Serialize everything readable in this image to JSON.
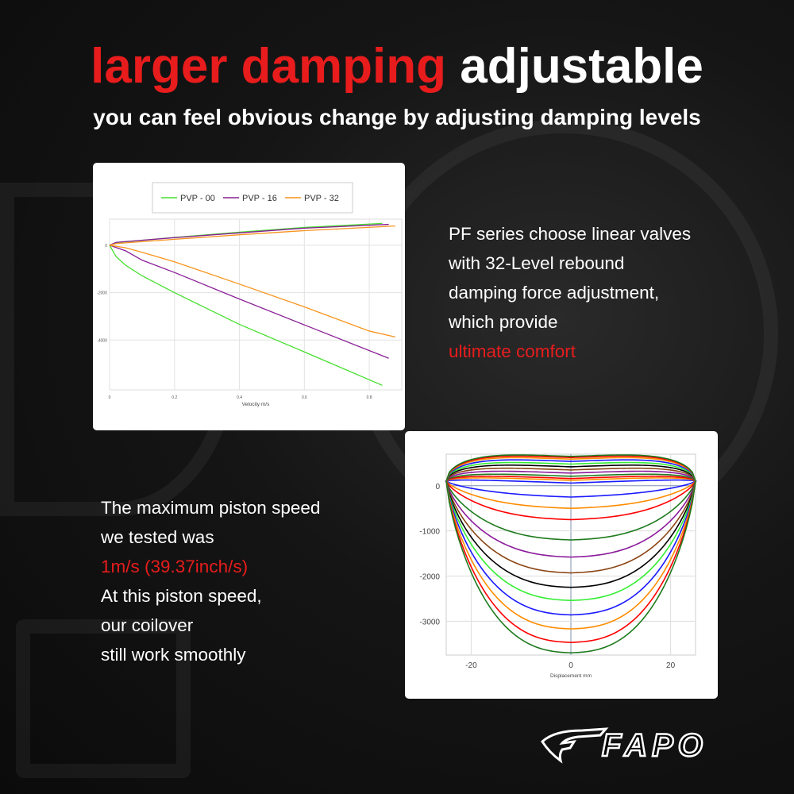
{
  "header": {
    "title_red": "larger damping",
    "title_white": "adjustable",
    "subtitle": "you can feel obvious change by adjusting damping levels"
  },
  "right_copy": {
    "lines": [
      "PF series choose linear valves",
      "with 32-Level rebound",
      "damping force adjustment,",
      "which provide"
    ],
    "highlight": "ultimate comfort"
  },
  "left_copy": {
    "lines_before": [
      "The maximum piston speed",
      "we tested was"
    ],
    "highlight": "1m/s (39.37inch/s)",
    "lines_after": [
      "At this piston speed,",
      "our coilover",
      "still work smoothly"
    ]
  },
  "logo": {
    "text": "FAPO"
  },
  "colors": {
    "accent_red": "#e81c1c",
    "background": "#111111"
  },
  "chart_data": [
    {
      "type": "line",
      "title": "",
      "xlabel": "Velocity m/s",
      "ylabel": "",
      "xlim": [
        0,
        0.9
      ],
      "ylim": [
        -6100,
        1100
      ],
      "x_ticks": [
        "0",
        "0.2",
        "0.4",
        "0.6",
        "0.8"
      ],
      "y_ticks": [
        "0",
        "-2000",
        "-4000"
      ],
      "grid": true,
      "legend": "top",
      "series": [
        {
          "name": "PVP - 00",
          "color": "#44e02c",
          "compression": [
            [
              0,
              0
            ],
            [
              0.02,
              110
            ],
            [
              0.2,
              330
            ],
            [
              0.4,
              550
            ],
            [
              0.6,
              750
            ],
            [
              0.84,
              920
            ]
          ],
          "rebound": [
            [
              0,
              0
            ],
            [
              0.02,
              -480
            ],
            [
              0.05,
              -850
            ],
            [
              0.1,
              -1290
            ],
            [
              0.2,
              -2000
            ],
            [
              0.4,
              -3340
            ],
            [
              0.6,
              -4500
            ],
            [
              0.84,
              -5910
            ]
          ]
        },
        {
          "name": "PVP - 16",
          "color": "#8a1f96",
          "compression": [
            [
              0,
              0
            ],
            [
              0.02,
              120
            ],
            [
              0.2,
              320
            ],
            [
              0.4,
              520
            ],
            [
              0.6,
              720
            ],
            [
              0.86,
              880
            ]
          ],
          "rebound": [
            [
              0,
              0
            ],
            [
              0.05,
              -240
            ],
            [
              0.1,
              -630
            ],
            [
              0.2,
              -1150
            ],
            [
              0.4,
              -2270
            ],
            [
              0.6,
              -3360
            ],
            [
              0.86,
              -4770
            ]
          ]
        },
        {
          "name": "PVP - 32",
          "color": "#f7941d",
          "compression": [
            [
              0,
              0
            ],
            [
              0.02,
              70
            ],
            [
              0.2,
              250
            ],
            [
              0.4,
              440
            ],
            [
              0.6,
              615
            ],
            [
              0.88,
              810
            ]
          ],
          "rebound": [
            [
              0,
              0
            ],
            [
              0.05,
              -110
            ],
            [
              0.1,
              -300
            ],
            [
              0.2,
              -700
            ],
            [
              0.4,
              -1640
            ],
            [
              0.6,
              -2600
            ],
            [
              0.8,
              -3620
            ],
            [
              0.88,
              -3870
            ]
          ]
        }
      ]
    },
    {
      "type": "line",
      "title": "",
      "xlabel": "Displacement mm",
      "ylabel": "",
      "xlim": [
        -25,
        25
      ],
      "ylim": [
        -3750,
        700
      ],
      "x_ticks": [
        "-20",
        "0",
        "20"
      ],
      "y_ticks": [
        "0",
        "-1000",
        "-2000",
        "-3000"
      ],
      "grid": true,
      "series": [
        {
          "color": "#1a1aff",
          "max": 60,
          "min": -250
        },
        {
          "color": "#ff8c00",
          "max": 120,
          "min": -500
        },
        {
          "color": "#ff0000",
          "max": 160,
          "min": -750
        },
        {
          "color": "#1e7b1e",
          "max": 210,
          "min": -1200
        },
        {
          "color": "#8b1a9b",
          "max": 280,
          "min": -1580
        },
        {
          "color": "#8b4513",
          "max": 350,
          "min": -1930
        },
        {
          "color": "#000000",
          "max": 420,
          "min": -2250
        },
        {
          "color": "#33ee33",
          "max": 480,
          "min": -2540
        },
        {
          "color": "#1a1aff",
          "max": 540,
          "min": -2860
        },
        {
          "color": "#ff8c00",
          "max": 590,
          "min": -3170
        },
        {
          "color": "#ff0000",
          "max": 625,
          "min": -3470
        },
        {
          "color": "#1e7b1e",
          "max": 650,
          "min": -3700
        }
      ]
    }
  ]
}
